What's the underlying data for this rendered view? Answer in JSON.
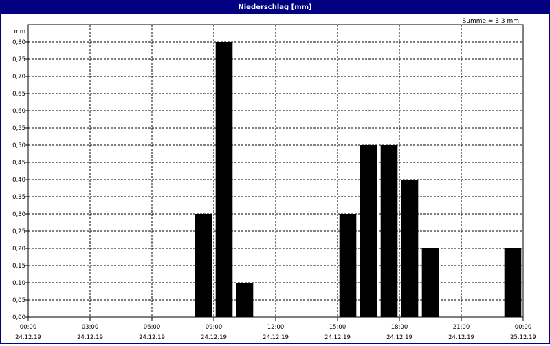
{
  "window": {
    "title": "Niederschlag [mm]"
  },
  "summary": "Summe = 3,3 mm",
  "chart_data": {
    "type": "bar",
    "title": "Niederschlag [mm]",
    "ylabel": "mm",
    "xlabel": "",
    "ylim": [
      0,
      0.85
    ],
    "yticks": [
      "0,00",
      "0,05",
      "0,10",
      "0,15",
      "0,20",
      "0,25",
      "0,30",
      "0,35",
      "0,40",
      "0,45",
      "0,50",
      "0,55",
      "0,60",
      "0,65",
      "0,70",
      "0,75",
      "0,80"
    ],
    "xlim_hours": [
      0,
      24
    ],
    "xticks": [
      {
        "time": "00:00",
        "date": "24.12.19"
      },
      {
        "time": "03:00",
        "date": "24.12.19"
      },
      {
        "time": "06:00",
        "date": "24.12.19"
      },
      {
        "time": "09:00",
        "date": "24.12.19"
      },
      {
        "time": "12:00",
        "date": "24.12.19"
      },
      {
        "time": "15:00",
        "date": "24.12.19"
      },
      {
        "time": "18:00",
        "date": "24.12.19"
      },
      {
        "time": "21:00",
        "date": "24.12.19"
      },
      {
        "time": "00:00",
        "date": "25.12.19"
      }
    ],
    "bars": [
      {
        "hour": 8,
        "value": 0.3
      },
      {
        "hour": 9,
        "value": 0.8
      },
      {
        "hour": 10,
        "value": 0.1
      },
      {
        "hour": 15,
        "value": 0.3
      },
      {
        "hour": 16,
        "value": 0.5
      },
      {
        "hour": 17,
        "value": 0.5
      },
      {
        "hour": 18,
        "value": 0.4
      },
      {
        "hour": 19,
        "value": 0.2
      },
      {
        "hour": 23,
        "value": 0.2
      }
    ],
    "grid": true,
    "bar_color": "#000000"
  }
}
